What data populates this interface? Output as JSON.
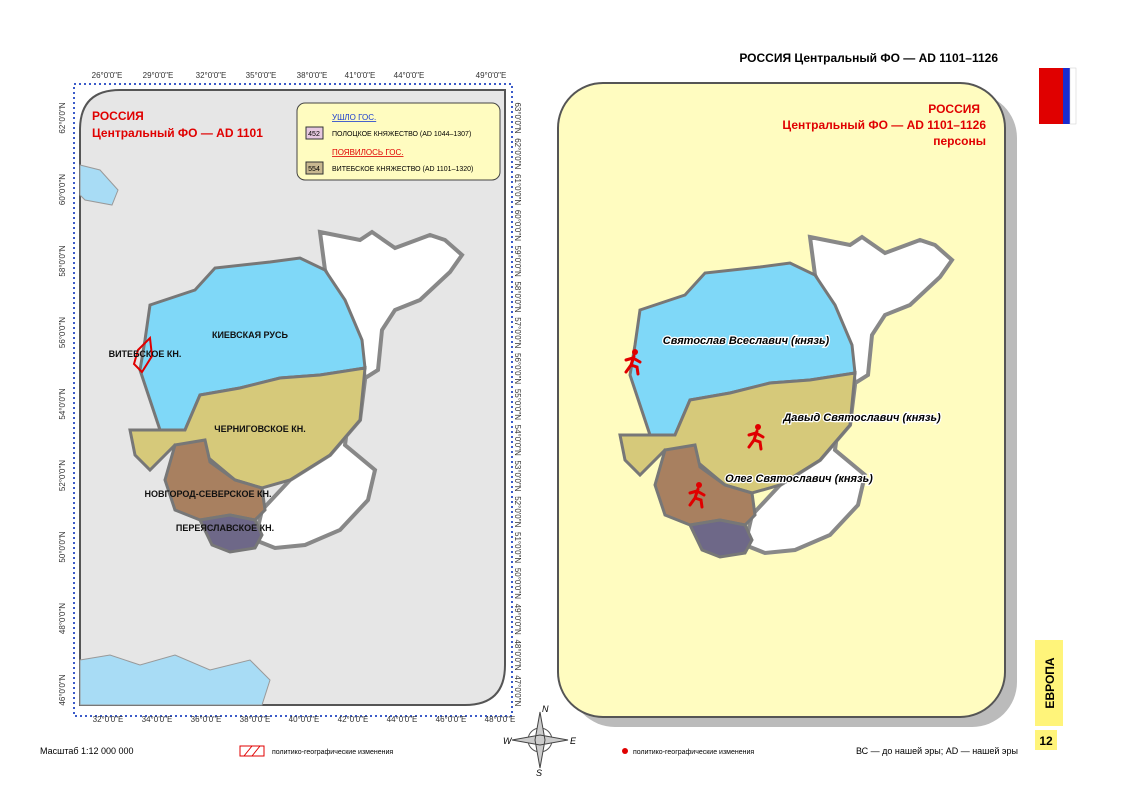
{
  "header": {
    "title": "РОССИЯ Центральный ФО — AD 1101–1126"
  },
  "left_map": {
    "title_1": "РОССИЯ",
    "title_2": "Центральный ФО — AD 1101",
    "legend": {
      "gone_heading": "УШЛО ГОС.",
      "gone_code": "452",
      "gone_name": "ПОЛОЦКОЕ КНЯЖЕСТВО (AD 1044–1307)",
      "new_heading": "ПОЯВИЛОСЬ ГОС.",
      "new_code": "554",
      "new_name": "ВИТЕБСКОЕ КНЯЖЕСТВО (AD 1101–1320)"
    },
    "regions": [
      "КИЕВСКАЯ РУСЬ",
      "ВИТЕБСКОЕ КН.",
      "ЧЕРНИГОВСКОЕ КН.",
      "НОВГОРОД-СЕВЕРСКОЕ КН.",
      "ПЕРЕЯСЛАВСКОЕ КН."
    ],
    "top_lon": [
      "26°0'0\"E",
      "29°0'0\"E",
      "32°0'0\"E",
      "35°0'0\"E",
      "38°0'0\"E",
      "41°0'0\"E",
      "44°0'0\"E",
      "49°0'0\"E"
    ],
    "bottom_lon": [
      "32°0'0\"E",
      "34°0'0\"E",
      "36°0'0\"E",
      "38°0'0\"E",
      "40°0'0\"E",
      "42°0'0\"E",
      "44°0'0\"E",
      "46°0'0\"E",
      "48°0'0\"E"
    ],
    "left_lat": [
      "62°0'0\"N",
      "60°0'0\"N",
      "58°0'0\"N",
      "56°0'0\"N",
      "54°0'0\"N",
      "52°0'0\"N",
      "50°0'0\"N",
      "48°0'0\"N",
      "46°0'0\"N"
    ],
    "right_lat": [
      "63°0'0\"N",
      "62°0'0\"N",
      "61°0'0\"N",
      "60°0'0\"N",
      "59°0'0\"N",
      "58°0'0\"N",
      "57°0'0\"N",
      "56°0'0\"N",
      "55°0'0\"N",
      "54°0'0\"N",
      "53°0'0\"N",
      "52°0'0\"N",
      "51°0'0\"N",
      "50°0'0\"N",
      "49°0'0\"N",
      "48°0'0\"N",
      "47°0'0\"N"
    ]
  },
  "right_map": {
    "title_1": "РОССИЯ",
    "title_2": "Центральный ФО — AD 1101–1126",
    "title_3": "персоны",
    "persons": [
      "Святослав Всеславич (князь)",
      "Давыд Святославич (князь)",
      "Олег Святославич (князь)"
    ]
  },
  "compass": [
    "N",
    "W",
    "E",
    "S"
  ],
  "footer": {
    "scale": "Масштаб 1:12 000 000",
    "legend_left": "политико-географические изменения",
    "legend_right": "политико-географические изменения",
    "note": "ВС — до нашей эры; AD — нашей эры",
    "section": "ЕВРОПА",
    "page": "12"
  }
}
